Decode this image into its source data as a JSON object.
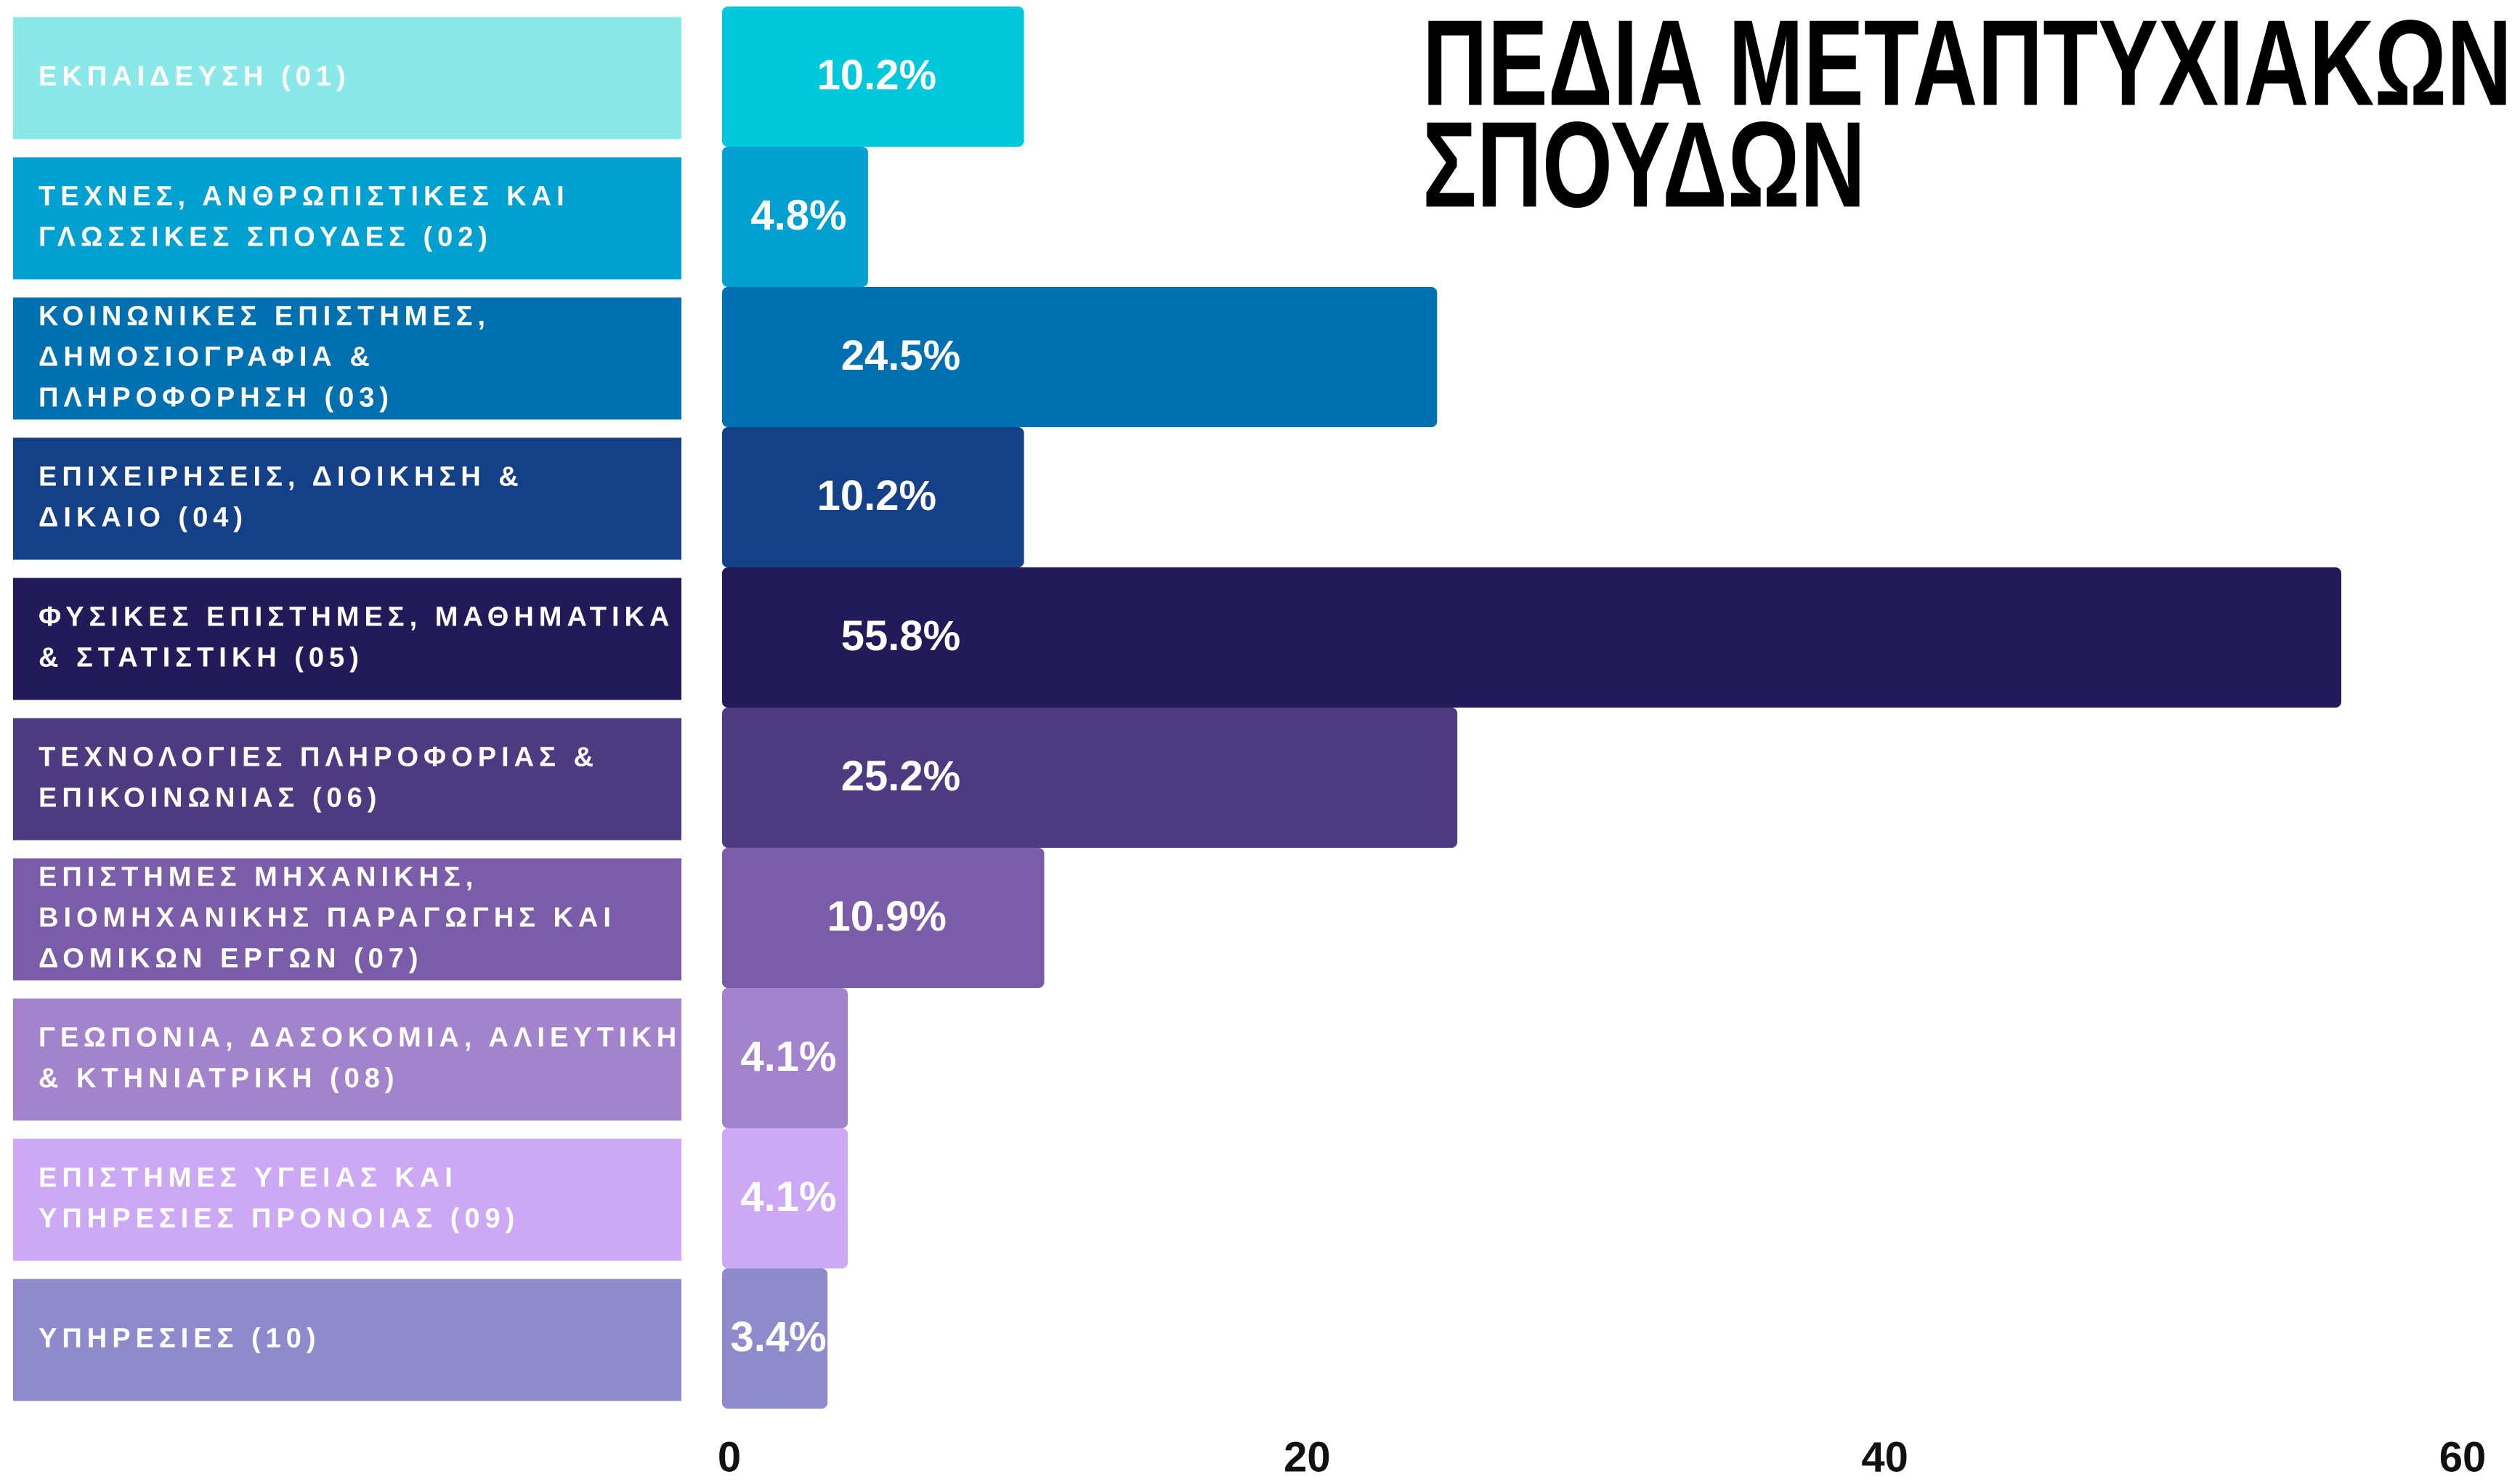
{
  "chart_data": {
    "type": "bar",
    "orientation": "horizontal",
    "title": [
      "ΠΕΔΙΑ ΜΕΤΑΠΤΥΧΙΑΚΩΝ",
      "ΣΠΟΥΔΩΝ"
    ],
    "categories": [
      [
        "ΕΚΠΑΙΔΕΥΣΗ (01)"
      ],
      [
        "ΤΕΧΝΕΣ, ΑΝΘΡΩΠΙΣΤΙΚΕΣ ΚΑΙ",
        "ΓΛΩΣΣΙΚΕΣ ΣΠΟΥΔΕΣ (02)"
      ],
      [
        "ΚΟΙΝΩΝΙΚΕΣ ΕΠΙΣΤΗΜΕΣ,",
        "ΔΗΜΟΣΙΟΓΡΑΦΙΑ &",
        "ΠΛΗΡΟΦΟΡΗΣΗ (03)"
      ],
      [
        "ΕΠΙΧΕΙΡΗΣΕΙΣ, ΔΙΟΙΚΗΣΗ &",
        "ΔΙΚΑΙΟ (04)"
      ],
      [
        "ΦΥΣΙΚΕΣ ΕΠΙΣΤΗΜΕΣ, ΜΑΘΗΜΑΤΙΚΑ",
        "& ΣΤΑΤΙΣΤΙΚΗ (05)"
      ],
      [
        "ΤΕΧΝΟΛΟΓΙΕΣ ΠΛΗΡΟΦΟΡΙΑΣ &",
        "ΕΠΙΚΟΙΝΩΝΙΑΣ (06)"
      ],
      [
        "ΕΠΙΣΤΗΜΕΣ ΜΗΧΑΝΙΚΗΣ,",
        "ΒΙΟΜΗΧΑΝΙΚΗΣ ΠΑΡΑΓΩΓΗΣ ΚΑΙ",
        "ΔΟΜΙΚΩΝ ΕΡΓΩΝ (07)"
      ],
      [
        "ΓΕΩΠΟΝΙΑ, ΔΑΣΟΚΟΜΙΑ, ΑΛΙΕΥΤΙΚΗ",
        "& ΚΤΗΝΙΑΤΡΙΚΗ (08)"
      ],
      [
        "ΕΠΙΣΤΗΜΕΣ ΥΓΕΙΑΣ ΚΑΙ",
        "ΥΠΗΡΕΣΙΕΣ ΠΡΟΝΟΙΑΣ (09)"
      ],
      [
        "ΥΠΗΡΕΣΙΕΣ (10)"
      ]
    ],
    "values": [
      10.2,
      4.8,
      24.5,
      10.2,
      55.8,
      25.2,
      10.9,
      4.1,
      4.1,
      3.4
    ],
    "value_labels": [
      "10.2%",
      "4.8%",
      "24.5%",
      "10.2%",
      "55.8%",
      "25.2%",
      "10.9%",
      "4.1%",
      "4.1%",
      "3.4%"
    ],
    "colors": [
      "#00c8dc",
      "#00a0d0",
      "#0070b0",
      "#144088",
      "#231a5a",
      "#4d3a80",
      "#7a5ca8",
      "#a383cc",
      "#cda8f4",
      "#8f8acc"
    ],
    "label_colors": [
      "#8be8e8",
      "#00a0d0",
      "#0070b0",
      "#144088",
      "#231a5a",
      "#4d3a80",
      "#7a5ca8",
      "#a383cc",
      "#cda8f4",
      "#8f8acc"
    ],
    "xlim": [
      0,
      60
    ],
    "xticks": [
      0,
      20,
      40,
      60
    ]
  }
}
